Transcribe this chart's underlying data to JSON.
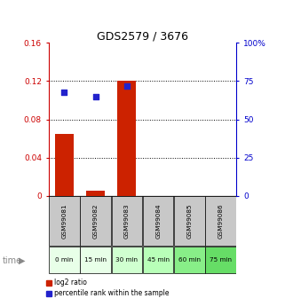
{
  "title": "GDS2579 / 3676",
  "samples": [
    "GSM99081",
    "GSM99082",
    "GSM99083",
    "GSM99084",
    "GSM99085",
    "GSM99086"
  ],
  "time_labels": [
    "0 min",
    "15 min",
    "30 min",
    "45 min",
    "60 min",
    "75 min"
  ],
  "time_colors": [
    "#e8ffe8",
    "#e8ffe8",
    "#d0ffd0",
    "#b8ffb8",
    "#88ee88",
    "#66dd66"
  ],
  "log2_ratio": [
    0.065,
    0.005,
    0.12,
    0.0,
    0.0,
    0.0
  ],
  "percentile_rank_values": [
    68,
    65,
    72,
    -1,
    -1,
    -1
  ],
  "ylim_left": [
    0,
    0.16
  ],
  "ylim_right": [
    0,
    100
  ],
  "yticks_left": [
    0,
    0.04,
    0.08,
    0.12,
    0.16
  ],
  "ytick_labels_left": [
    "0",
    "0.04",
    "0.08",
    "0.12",
    "0.16"
  ],
  "yticks_right": [
    0,
    25,
    50,
    75,
    100
  ],
  "ytick_labels_right": [
    "0",
    "25",
    "50",
    "75",
    "100%"
  ],
  "bar_color": "#cc2200",
  "dot_color": "#2222cc",
  "sample_box_color": "#c8c8c8",
  "fig_bg": "#ffffff",
  "bar_width": 0.6,
  "dot_size": 25,
  "left_axis_color": "#cc0000",
  "right_axis_color": "#0000cc"
}
